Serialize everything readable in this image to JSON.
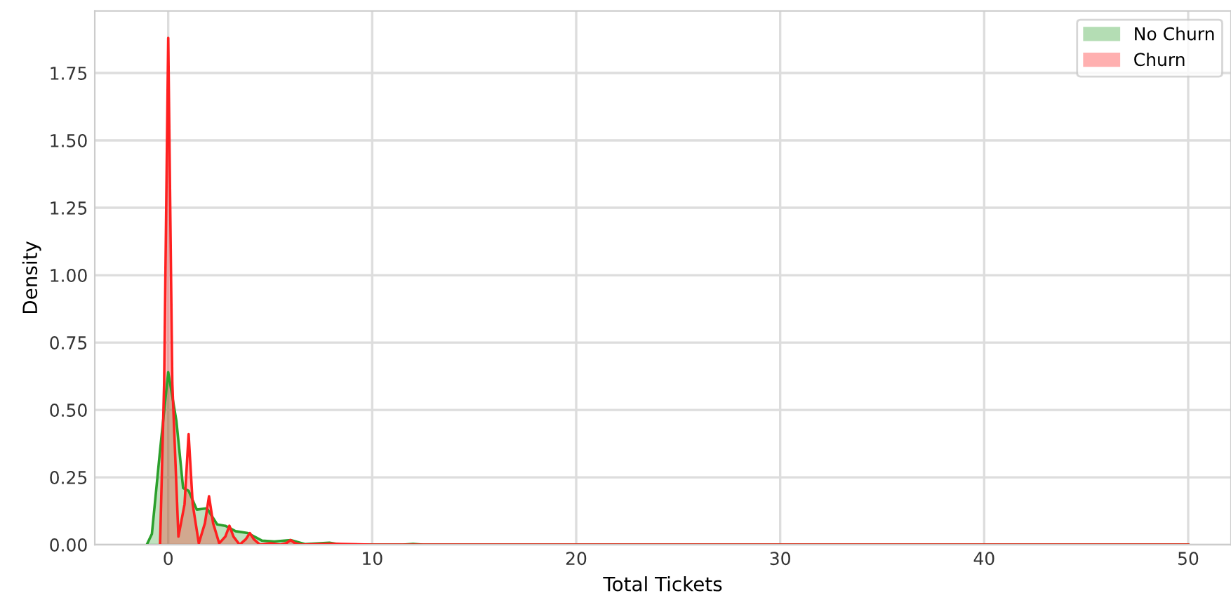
{
  "chart_data": {
    "type": "area",
    "xlabel": "Total Tickets",
    "ylabel": "Density",
    "series": [
      {
        "name": "No Churn",
        "color": "#2ca02c",
        "x": [
          -1.05,
          -0.8,
          -0.4,
          0,
          0.4,
          0.73,
          1.0,
          1.4,
          1.9,
          2.4,
          2.8,
          3.3,
          3.9,
          4.6,
          5.2,
          6.0,
          6.7,
          7.9,
          8.5,
          10,
          11.5,
          12,
          12.5,
          15,
          20,
          30,
          40,
          50
        ],
        "values": [
          0,
          0.04,
          0.35,
          0.64,
          0.46,
          0.21,
          0.2,
          0.13,
          0.135,
          0.075,
          0.07,
          0.05,
          0.043,
          0.015,
          0.012,
          0.017,
          0.002,
          0.007,
          0,
          0,
          0,
          0.003,
          0,
          0,
          0,
          0,
          0,
          0
        ]
      },
      {
        "name": "Churn",
        "color": "#ff2020",
        "x": [
          -0.4,
          -0.2,
          0,
          0.2,
          0.5,
          0.8,
          1,
          1.2,
          1.5,
          1.8,
          2,
          2.2,
          2.5,
          2.8,
          3,
          3.2,
          3.5,
          3.8,
          4,
          4.2,
          4.5,
          5,
          5.5,
          5.8,
          6,
          6.2,
          6.5,
          8,
          10,
          20,
          30,
          40,
          50
        ],
        "values": [
          0,
          0.6,
          1.88,
          0.6,
          0.03,
          0.15,
          0.41,
          0.15,
          0.005,
          0.08,
          0.18,
          0.08,
          0.005,
          0.03,
          0.07,
          0.03,
          0,
          0.02,
          0.043,
          0.02,
          0,
          0.005,
          0,
          0.006,
          0.017,
          0.006,
          0,
          0.003,
          0,
          0,
          0,
          0,
          0
        ]
      }
    ],
    "xlim": [
      -3.6,
      52.1
    ],
    "xticks": [
      0,
      10,
      20,
      30,
      40,
      50
    ],
    "ylim": [
      0,
      1.98
    ],
    "yticks": [
      {
        "value": 0,
        "label": "0.00"
      },
      {
        "value": 0.25,
        "label": "0.25"
      },
      {
        "value": 0.5,
        "label": "0.50"
      },
      {
        "value": 0.75,
        "label": "0.75"
      },
      {
        "value": 1.0,
        "label": "1.00"
      },
      {
        "value": 1.25,
        "label": "1.25"
      },
      {
        "value": 1.5,
        "label": "1.50"
      },
      {
        "value": 1.75,
        "label": "1.75"
      }
    ],
    "grid": true,
    "legend": "top right"
  }
}
